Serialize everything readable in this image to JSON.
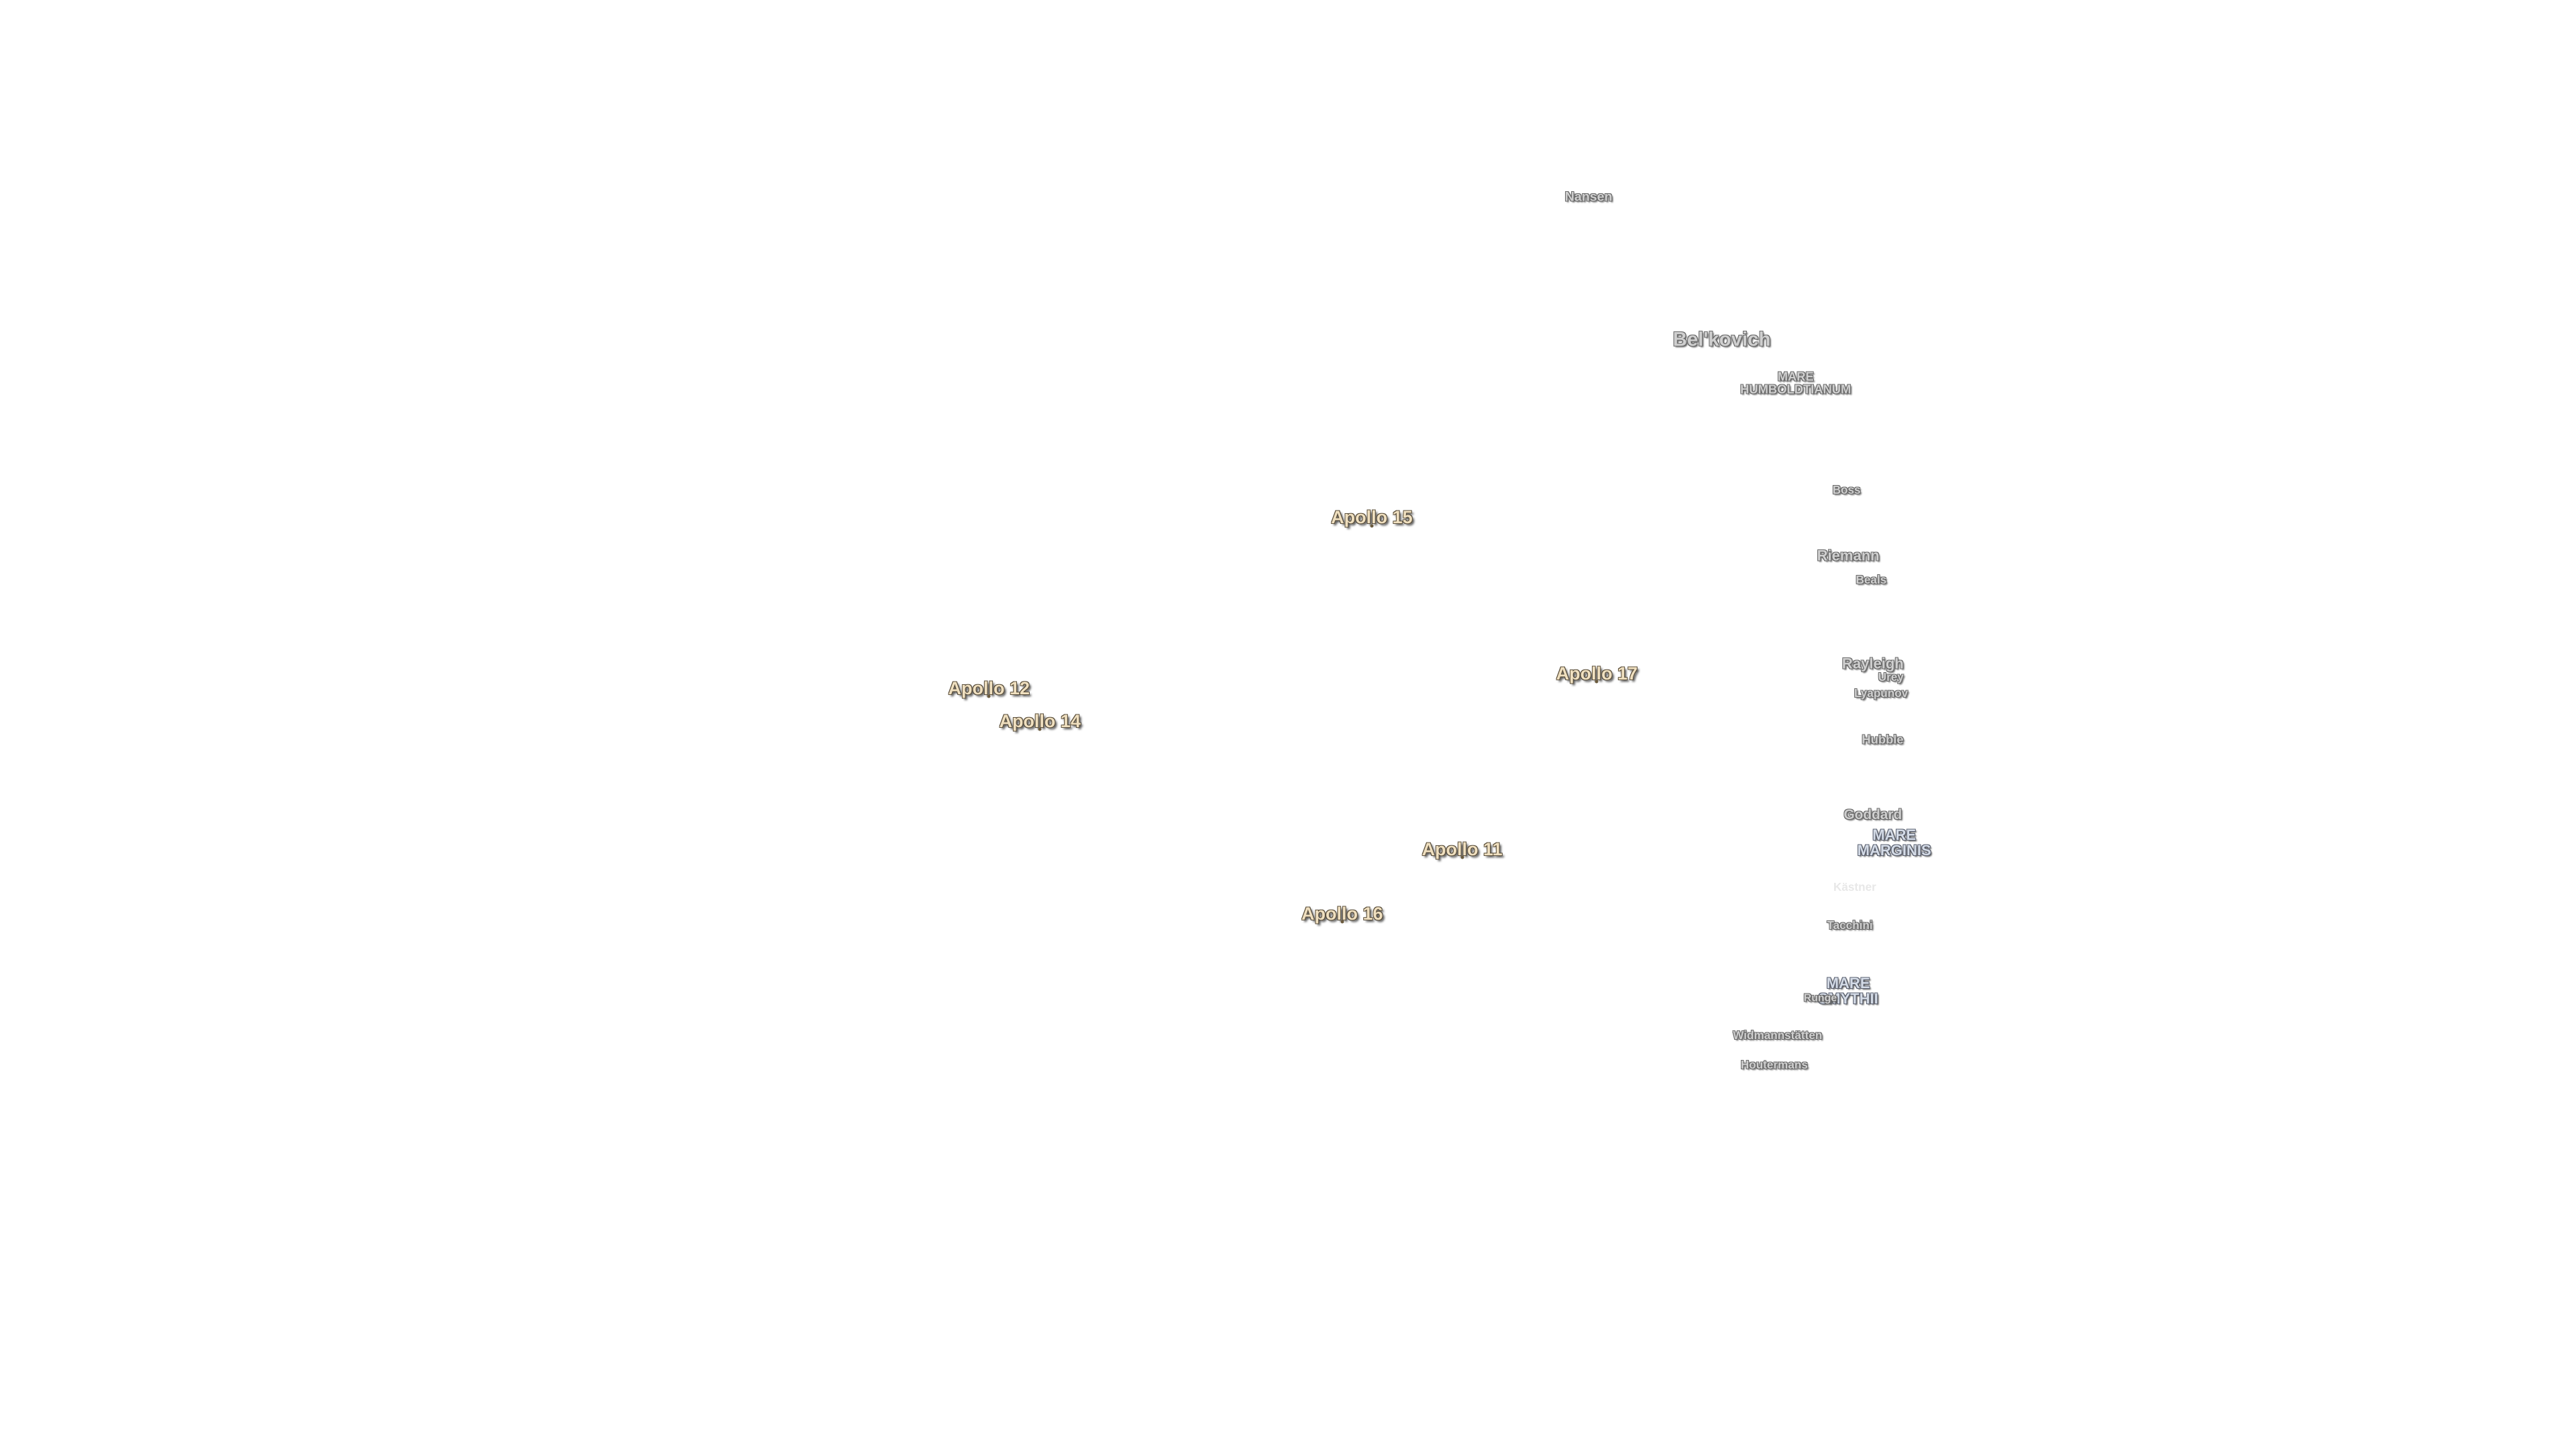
{
  "apollo_sites": [
    "Apollo 15",
    "Apollo 12",
    "Apollo 14",
    "Apollo 17",
    "Apollo 11",
    "Apollo 16"
  ],
  "features": [
    [
      "Nansen"
    ],
    [
      "Bel'kovich"
    ],
    [
      "MARE",
      "HUMBOLDTIANUM"
    ],
    [
      "Boss"
    ],
    [
      "Riemann"
    ],
    [
      "Beals"
    ],
    [
      "Rayleigh"
    ],
    [
      "Urey"
    ],
    [
      "Lyapunov"
    ],
    [
      "Hubble"
    ],
    [
      "Goddard"
    ],
    [
      "MARE",
      "MARGINIS"
    ],
    [
      "Kästner"
    ],
    [
      "Tacchini"
    ],
    [
      "MARE",
      "SMYTHII"
    ],
    [
      "Runge"
    ],
    [
      "Widmannstätten"
    ],
    [
      "Houtermans"
    ]
  ]
}
